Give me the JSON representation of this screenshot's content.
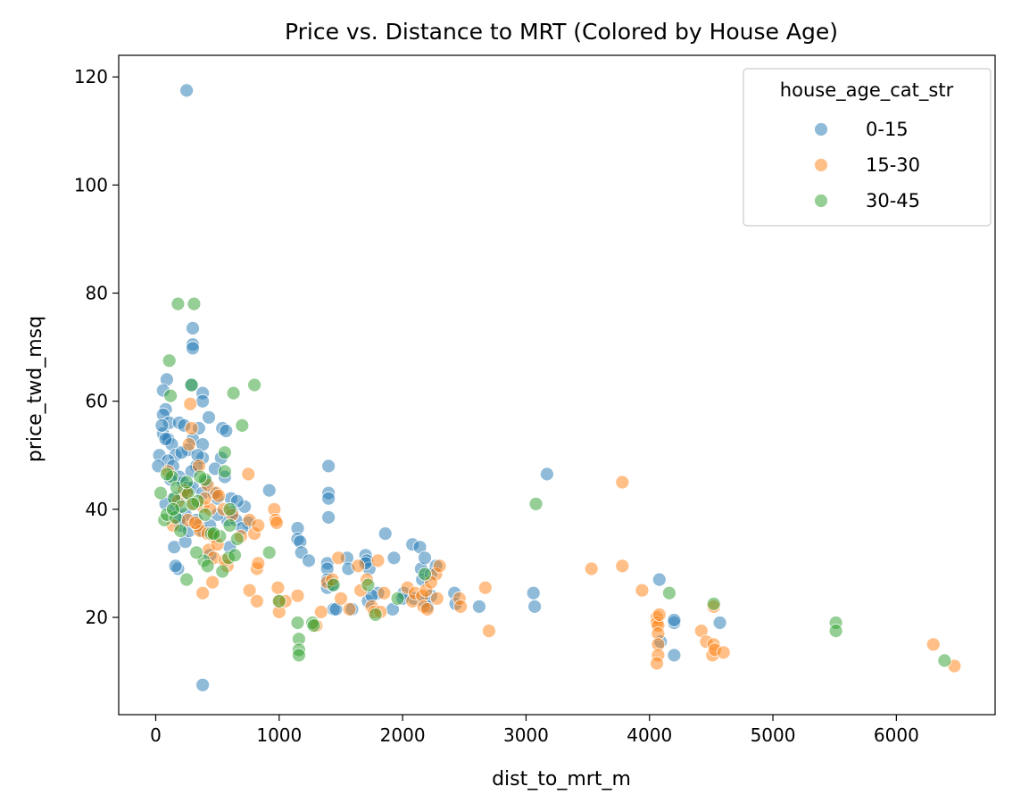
{
  "chart_data": {
    "type": "scatter",
    "title": "Price vs. Distance to MRT (Colored by House Age)",
    "xlabel": "dist_to_mrt_m",
    "ylabel": "price_twd_msq",
    "xlim": [
      -300,
      6800
    ],
    "ylim": [
      2,
      124
    ],
    "xticks": [
      0,
      1000,
      2000,
      3000,
      4000,
      5000,
      6000
    ],
    "yticks": [
      20,
      40,
      60,
      80,
      100,
      120
    ],
    "grid": false,
    "legend": {
      "title": "house_age_cat_str",
      "placement": "top-right"
    },
    "series": [
      {
        "name": "0-15",
        "color": "#1f77b4",
        "points": [
          [
            250,
            117.5
          ],
          [
            380,
            7.5
          ],
          [
            300,
            73.5
          ],
          [
            300,
            70.5
          ],
          [
            300,
            69.8
          ],
          [
            90,
            64
          ],
          [
            60,
            62
          ],
          [
            290,
            63
          ],
          [
            380,
            61.5
          ],
          [
            380,
            60
          ],
          [
            80,
            58.5
          ],
          [
            60,
            57.5
          ],
          [
            430,
            57
          ],
          [
            110,
            56
          ],
          [
            190,
            56
          ],
          [
            230,
            55.5
          ],
          [
            350,
            55
          ],
          [
            540,
            55
          ],
          [
            570,
            54.5
          ],
          [
            60,
            54
          ],
          [
            100,
            53
          ],
          [
            300,
            53
          ],
          [
            130,
            52
          ],
          [
            380,
            52
          ],
          [
            30,
            50
          ],
          [
            260,
            51
          ],
          [
            160,
            50
          ],
          [
            210,
            50.5
          ],
          [
            380,
            49.5
          ],
          [
            530,
            49.5
          ],
          [
            100,
            49
          ],
          [
            140,
            48
          ],
          [
            330,
            48
          ],
          [
            20,
            48
          ],
          [
            480,
            47.5
          ],
          [
            290,
            47
          ],
          [
            190,
            46
          ],
          [
            560,
            46
          ],
          [
            220,
            45
          ],
          [
            260,
            44
          ],
          [
            410,
            45
          ],
          [
            300,
            44
          ],
          [
            380,
            43
          ],
          [
            500,
            42
          ],
          [
            470,
            43
          ],
          [
            140,
            42
          ],
          [
            610,
            42
          ],
          [
            80,
            41
          ],
          [
            160,
            40
          ],
          [
            720,
            40.5
          ],
          [
            240,
            39
          ],
          [
            330,
            38
          ],
          [
            580,
            38
          ],
          [
            200,
            37
          ],
          [
            750,
            37.5
          ],
          [
            150,
            33
          ],
          [
            240,
            34
          ],
          [
            180,
            29
          ],
          [
            160,
            29.5
          ],
          [
            380,
            36
          ],
          [
            920,
            43.5
          ],
          [
            1400,
            48
          ],
          [
            1400,
            43
          ],
          [
            1400,
            42
          ],
          [
            1400,
            38.5
          ],
          [
            1150,
            36.5
          ],
          [
            1150,
            34.5
          ],
          [
            1170,
            34
          ],
          [
            1180,
            32
          ],
          [
            1240,
            30.5
          ],
          [
            1390,
            30
          ],
          [
            1390,
            29
          ],
          [
            1390,
            27
          ],
          [
            1390,
            25.5
          ],
          [
            1430,
            26
          ],
          [
            1440,
            21.5
          ],
          [
            1460,
            21.5
          ],
          [
            1550,
            31
          ],
          [
            1560,
            29
          ],
          [
            1590,
            21.5
          ],
          [
            1700,
            31.5
          ],
          [
            1710,
            30.5
          ],
          [
            1730,
            29
          ],
          [
            1720,
            23
          ],
          [
            1800,
            24.5
          ],
          [
            1860,
            35.5
          ],
          [
            1930,
            31
          ],
          [
            1920,
            21.5
          ],
          [
            2010,
            24.5
          ],
          [
            2080,
            33.5
          ],
          [
            2090,
            23.5
          ],
          [
            2140,
            33
          ],
          [
            2150,
            29
          ],
          [
            2160,
            27
          ],
          [
            2170,
            23
          ],
          [
            2230,
            24
          ],
          [
            2270,
            29.5
          ],
          [
            2420,
            24.5
          ],
          [
            2430,
            22.5
          ],
          [
            2620,
            22
          ],
          [
            3060,
            24.5
          ],
          [
            3070,
            22
          ],
          [
            3170,
            46.5
          ],
          [
            4080,
            27
          ],
          [
            4090,
            15.5
          ],
          [
            4200,
            19
          ],
          [
            4200,
            13
          ],
          [
            4200,
            19.5
          ],
          [
            4570,
            19
          ],
          [
            1700,
            30
          ],
          [
            1750,
            24
          ],
          [
            2000,
            23.5
          ],
          [
            2180,
            31
          ],
          [
            2200,
            22
          ],
          [
            2230,
            28
          ],
          [
            660,
            41.5
          ],
          [
            620,
            39.5
          ],
          [
            500,
            39
          ],
          [
            440,
            37
          ],
          [
            270,
            36
          ],
          [
            440,
            31.5
          ],
          [
            600,
            33
          ],
          [
            650,
            38
          ],
          [
            700,
            36.5
          ],
          [
            340,
            50
          ],
          [
            210,
            42.5
          ],
          [
            190,
            38
          ],
          [
            120,
            45.5
          ],
          [
            80,
            53
          ],
          [
            50,
            55.5
          ]
        ]
      },
      {
        "name": "15-30",
        "color": "#ff7f0e",
        "points": [
          [
            280,
            59.5
          ],
          [
            290,
            55
          ],
          [
            270,
            52
          ],
          [
            350,
            48
          ],
          [
            420,
            44.5
          ],
          [
            100,
            47
          ],
          [
            230,
            43.5
          ],
          [
            180,
            41.5
          ],
          [
            300,
            41
          ],
          [
            380,
            40.5
          ],
          [
            440,
            40
          ],
          [
            490,
            43
          ],
          [
            510,
            42.5
          ],
          [
            550,
            40
          ],
          [
            620,
            39
          ],
          [
            340,
            37
          ],
          [
            360,
            36
          ],
          [
            420,
            35.5
          ],
          [
            470,
            35
          ],
          [
            430,
            32.5
          ],
          [
            470,
            31
          ],
          [
            500,
            33.5
          ],
          [
            580,
            29.5
          ],
          [
            380,
            24.5
          ],
          [
            460,
            26.5
          ],
          [
            140,
            37
          ],
          [
            260,
            38
          ],
          [
            750,
            46.5
          ],
          [
            760,
            38
          ],
          [
            800,
            35.5
          ],
          [
            830,
            37
          ],
          [
            760,
            25
          ],
          [
            820,
            23
          ],
          [
            820,
            29
          ],
          [
            830,
            30
          ],
          [
            960,
            40
          ],
          [
            970,
            38
          ],
          [
            980,
            37.5
          ],
          [
            990,
            25.5
          ],
          [
            1000,
            23
          ],
          [
            1000,
            21
          ],
          [
            1050,
            23
          ],
          [
            1150,
            24
          ],
          [
            1340,
            21
          ],
          [
            1390,
            26.5
          ],
          [
            1430,
            27
          ],
          [
            1480,
            31
          ],
          [
            1500,
            23.5
          ],
          [
            1570,
            21.5
          ],
          [
            1640,
            29.5
          ],
          [
            1660,
            25
          ],
          [
            1710,
            27
          ],
          [
            1750,
            22
          ],
          [
            1770,
            21
          ],
          [
            1800,
            30.5
          ],
          [
            1820,
            21
          ],
          [
            1850,
            24.5
          ],
          [
            2040,
            25.5
          ],
          [
            2080,
            23
          ],
          [
            2100,
            24.5
          ],
          [
            2160,
            24
          ],
          [
            2170,
            22
          ],
          [
            2190,
            25
          ],
          [
            2200,
            21.5
          ],
          [
            2270,
            28
          ],
          [
            2280,
            23.5
          ],
          [
            2300,
            29.5
          ],
          [
            2460,
            23.5
          ],
          [
            2470,
            22
          ],
          [
            2670,
            25.5
          ],
          [
            2700,
            17.5
          ],
          [
            3530,
            29
          ],
          [
            3780,
            29.5
          ],
          [
            3780,
            45
          ],
          [
            3940,
            25
          ],
          [
            4060,
            20
          ],
          [
            4060,
            19
          ],
          [
            4070,
            18.5
          ],
          [
            4070,
            17
          ],
          [
            4070,
            15
          ],
          [
            4070,
            13
          ],
          [
            4060,
            11.5
          ],
          [
            4080,
            20.5
          ],
          [
            4420,
            17.5
          ],
          [
            4460,
            15.5
          ],
          [
            4510,
            13
          ],
          [
            4520,
            15
          ],
          [
            4530,
            14
          ],
          [
            4600,
            13.5
          ],
          [
            4520,
            22
          ],
          [
            6300,
            15
          ],
          [
            6470,
            11
          ],
          [
            1300,
            18.5
          ],
          [
            2230,
            26.5
          ],
          [
            690,
            35
          ],
          [
            560,
            30.5
          ],
          [
            320,
            37.5
          ],
          [
            400,
            42
          ],
          [
            250,
            43
          ]
        ]
      },
      {
        "name": "30-45",
        "color": "#2ca02c",
        "points": [
          [
            180,
            78
          ],
          [
            310,
            78
          ],
          [
            110,
            67.5
          ],
          [
            290,
            63
          ],
          [
            630,
            61.5
          ],
          [
            800,
            63
          ],
          [
            700,
            55.5
          ],
          [
            560,
            50.5
          ],
          [
            120,
            61
          ],
          [
            130,
            46
          ],
          [
            90,
            46.5
          ],
          [
            150,
            42
          ],
          [
            40,
            43
          ],
          [
            70,
            38
          ],
          [
            90,
            39
          ],
          [
            160,
            38.5
          ],
          [
            210,
            40.5
          ],
          [
            260,
            43
          ],
          [
            200,
            36
          ],
          [
            140,
            40
          ],
          [
            340,
            41.5
          ],
          [
            400,
            39
          ],
          [
            450,
            35.5
          ],
          [
            520,
            35
          ],
          [
            540,
            28.5
          ],
          [
            590,
            31
          ],
          [
            640,
            31.5
          ],
          [
            660,
            34.5
          ],
          [
            600,
            37
          ],
          [
            390,
            30.5
          ],
          [
            420,
            29.5
          ],
          [
            330,
            32
          ],
          [
            250,
            27
          ],
          [
            300,
            41
          ],
          [
            400,
            45.5
          ],
          [
            470,
            35.5
          ],
          [
            920,
            32
          ],
          [
            1000,
            23
          ],
          [
            1150,
            19
          ],
          [
            1160,
            16
          ],
          [
            1160,
            14
          ],
          [
            1160,
            13
          ],
          [
            1270,
            19
          ],
          [
            1280,
            18.5
          ],
          [
            1440,
            26
          ],
          [
            1720,
            26
          ],
          [
            1780,
            20.5
          ],
          [
            1960,
            23.5
          ],
          [
            2180,
            28
          ],
          [
            3080,
            41
          ],
          [
            4160,
            24.5
          ],
          [
            4520,
            22.5
          ],
          [
            5510,
            19
          ],
          [
            5510,
            17.5
          ],
          [
            6390,
            12
          ],
          [
            560,
            47
          ],
          [
            600,
            40
          ],
          [
            170,
            44
          ],
          [
            250,
            45
          ],
          [
            360,
            46
          ]
        ]
      }
    ]
  }
}
